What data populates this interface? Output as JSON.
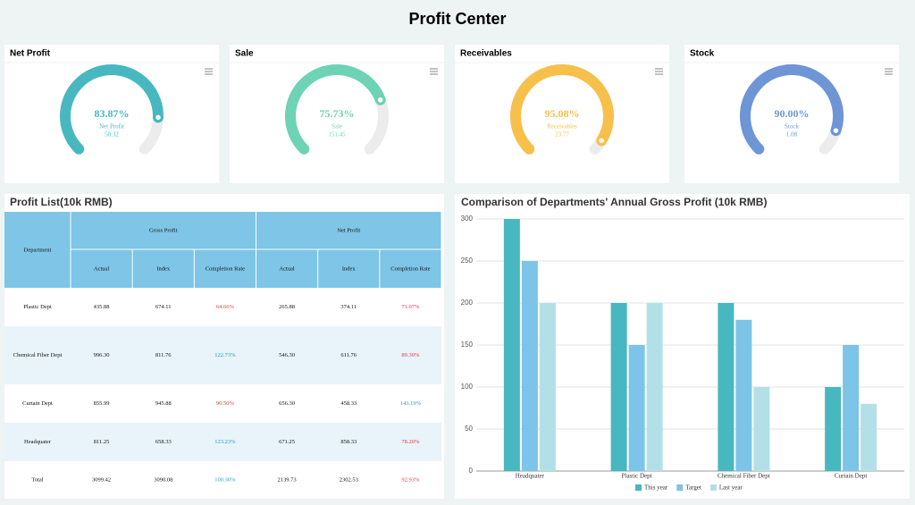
{
  "header": {
    "title": "Profit Center"
  },
  "gauges": [
    {
      "title": "Net Profit",
      "value": 83.87,
      "value_label": "83.87%",
      "name": "Net Profit",
      "amount": 50.32,
      "color": "#48b8c0"
    },
    {
      "title": "Sale",
      "value": 75.73,
      "value_label": "75.73%",
      "name": "Sale",
      "amount": 151.45,
      "color": "#6dd3b4"
    },
    {
      "title": "Receivables",
      "value": 95.08,
      "value_label": "95.08%",
      "name": "Receivables",
      "amount": 23.77,
      "color": "#f7c04a"
    },
    {
      "title": "Stock",
      "value": 90.0,
      "value_label": "90.00%",
      "name": "Stock",
      "amount": 1.08,
      "color": "#6e95d6"
    }
  ],
  "table": {
    "title": "Profit List(10k RMB)",
    "header": {
      "department": "Department",
      "groups": [
        "Gross Profit",
        "Net Profit"
      ],
      "columns": [
        "Actual",
        "Index",
        "Completion Rate",
        "Actual",
        "Index",
        "Completion Rate"
      ]
    },
    "rows": [
      [
        "Plastic Dept",
        "435.88",
        "674.11",
        "64.66%",
        "265.88",
        "374.11",
        "71.07%"
      ],
      [
        "Chemical Fiber Dept",
        "996.30",
        "811.76",
        "122.73%",
        "546.30",
        "611.76",
        "89.30%"
      ],
      [
        "Curtain Dept",
        "855.99",
        "945.88",
        "90.50%",
        "656.30",
        "458.33",
        "143.19%"
      ],
      [
        "Headquater",
        "811.25",
        "658.33",
        "123.23%",
        "671.25",
        "858.33",
        "78.20%"
      ],
      [
        "Total",
        "3099.42",
        "3090.08",
        "100.30%",
        "2139.73",
        "2302.53",
        "92.93%"
      ]
    ]
  },
  "chart_data": {
    "type": "bar",
    "title": "Comparison of Departments' Annual Gross Profit (10k RMB)",
    "categories": [
      "Headquater",
      "Plastic Dept",
      "Chemical Fiber Dept",
      "Curtain Dept"
    ],
    "series": [
      {
        "name": "This year",
        "color": "#48b8c0",
        "values": [
          300,
          200,
          200,
          100
        ]
      },
      {
        "name": "Target",
        "color": "#7cc4e8",
        "values": [
          250,
          150,
          180,
          150
        ]
      },
      {
        "name": "Last year",
        "color": "#b3e0e6",
        "values": [
          200,
          200,
          100,
          80
        ]
      }
    ],
    "ylim": [
      0,
      300
    ],
    "yticks": [
      0,
      50,
      100,
      150,
      200,
      250,
      300
    ],
    "grid": true,
    "legend": "bottom"
  }
}
